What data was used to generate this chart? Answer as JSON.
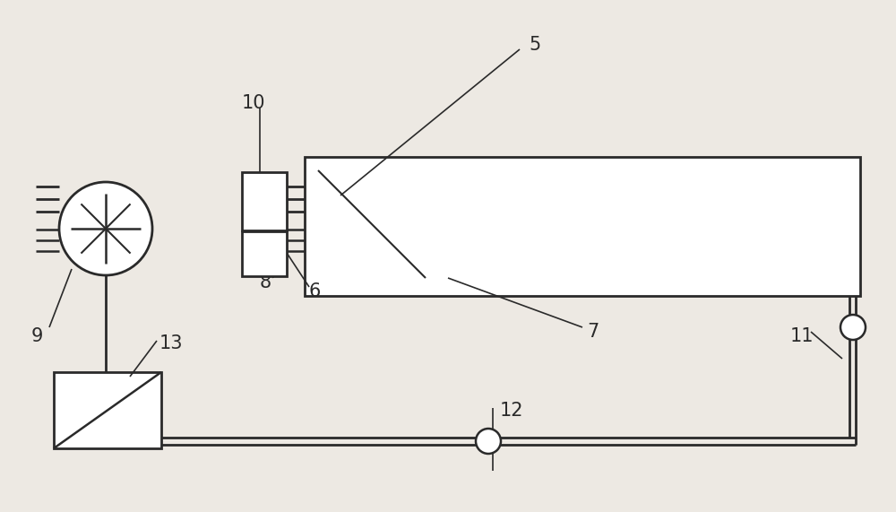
{
  "bg_color": "#ede9e3",
  "line_color": "#2a2a2a",
  "label_color": "#2a2a2a",
  "label_fontsize": 15,
  "fig_w": 10.0,
  "fig_h": 5.71,
  "dpi": 100
}
